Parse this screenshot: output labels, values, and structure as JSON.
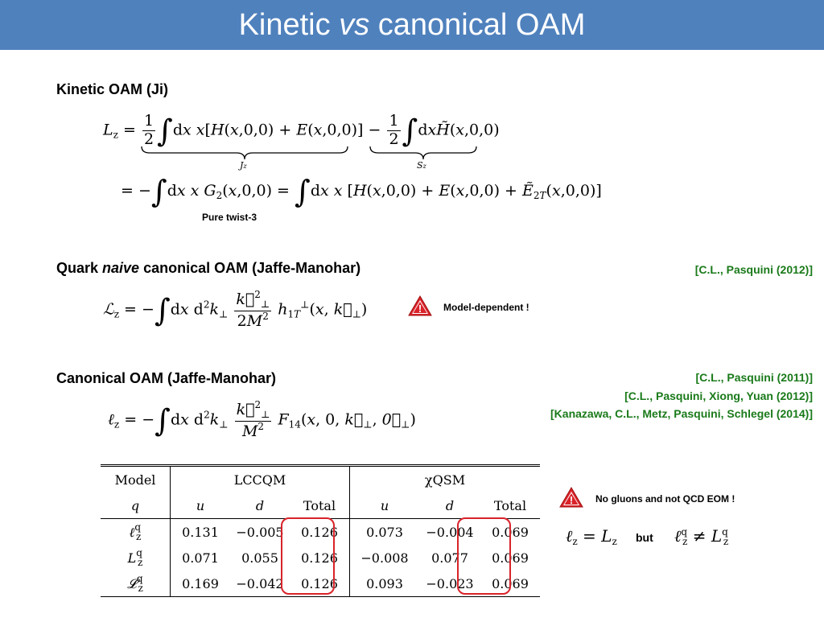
{
  "title": {
    "pre": "Kinetic ",
    "em": "vs",
    "post": " canonical OAM"
  },
  "sections": {
    "kinetic": {
      "heading": "Kinetic OAM (Ji)",
      "note": "Pure twist-3",
      "brace1": "J",
      "brace1_sub": "z",
      "brace2": "S",
      "brace2_sub": "z"
    },
    "naive": {
      "heading_pre": "Quark ",
      "heading_em": "naive",
      "heading_post": " canonical OAM (Jaffe-Manohar)",
      "ref": "[C.L., Pasquini (2012)]",
      "warning": "Model-dependent !"
    },
    "canonical": {
      "heading": "Canonical OAM (Jaffe-Manohar)",
      "refs": [
        "[C.L., Pasquini (2011)]",
        "[C.L., Pasquini, Xiong, Yuan (2012)]",
        "[Kanazawa, C.L., Metz, Pasquini, Schlegel (2014)]"
      ]
    }
  },
  "table": {
    "model_label": "Model",
    "q_label": "q",
    "models": [
      "LCCQM",
      "χQSM"
    ],
    "cols": [
      "u",
      "d",
      "Total",
      "u",
      "d",
      "Total"
    ],
    "rows": [
      {
        "label": "ℓ",
        "sup": "q",
        "sub": "z",
        "values": [
          "0.131",
          "−0.005",
          "0.126",
          "0.073",
          "−0.004",
          "0.069"
        ]
      },
      {
        "label": "L",
        "sup": "q",
        "sub": "z",
        "values": [
          "0.071",
          "0.055",
          "0.126",
          "−0.008",
          "0.077",
          "0.069"
        ]
      },
      {
        "label": "𝓛",
        "sup": "q",
        "sub": "z",
        "values": [
          "0.169",
          "−0.042",
          "0.126",
          "0.093",
          "−0.023",
          "0.069"
        ]
      }
    ]
  },
  "side": {
    "warning": "No gluons and not QCD EOM !",
    "but": "but"
  },
  "colors": {
    "title_bg": "#4f81bd",
    "ref_green": "#1a7a1a",
    "circle_red": "#d9232a",
    "warn_red": "#d9232a"
  }
}
